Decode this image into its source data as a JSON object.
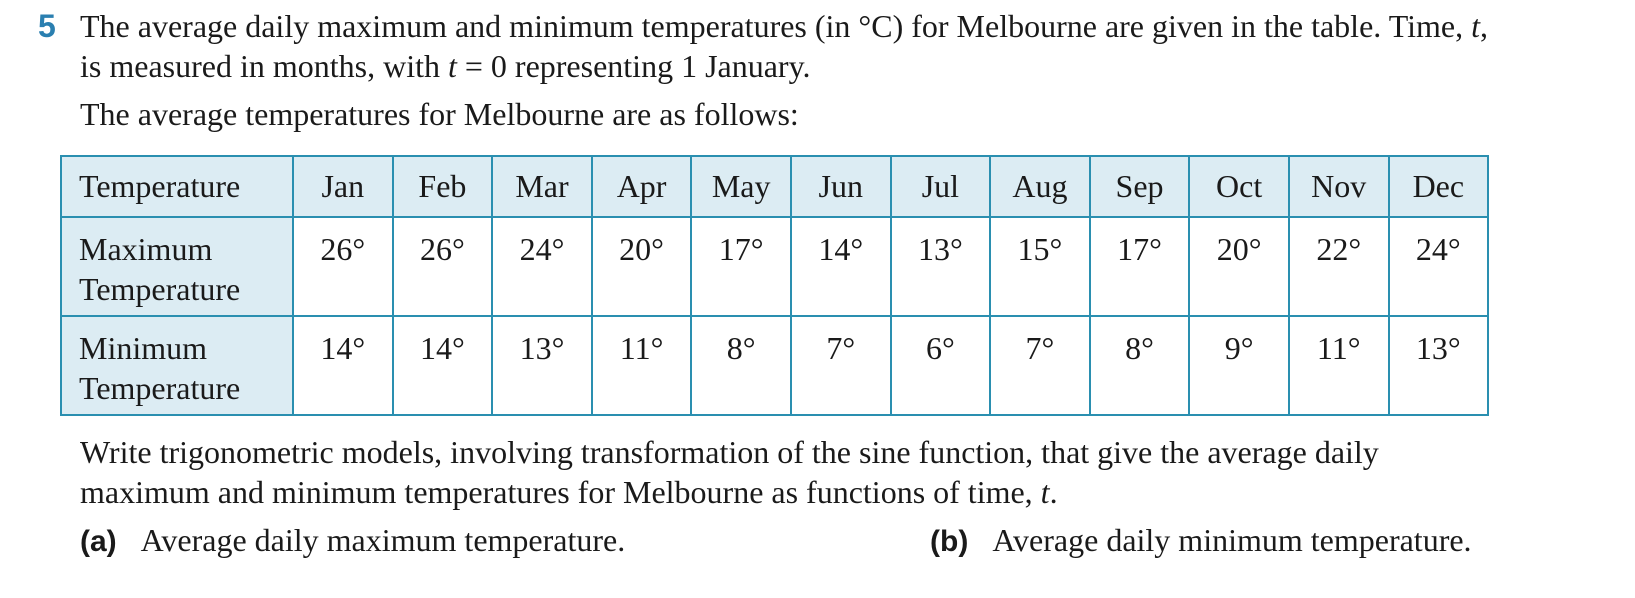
{
  "question": {
    "number": "5",
    "intro_line1_a": "The average daily maximum and minimum temperatures (in °C) for Melbourne are given in the table. Time, ",
    "intro_line1_var": "t",
    "intro_line1_b": ",",
    "intro_line2_a": "is measured in months, with ",
    "intro_line2_var": "t",
    "intro_line2_b": " = 0 representing 1 January.",
    "lead": "The average temperatures for Melbourne are as follows:",
    "instruction_line1": "Write trigonometric models, involving transformation of the sine function, that give the average daily",
    "instruction_line2_a": "maximum and minimum temperatures for Melbourne as functions of time, ",
    "instruction_line2_var": "t",
    "instruction_line2_b": "."
  },
  "table": {
    "header": [
      "Temperature",
      "Jan",
      "Feb",
      "Mar",
      "Apr",
      "May",
      "Jun",
      "Jul",
      "Aug",
      "Sep",
      "Oct",
      "Nov",
      "Dec"
    ],
    "rows": [
      {
        "label_line1": "Maximum",
        "label_line2": "Temperature",
        "values": [
          "26°",
          "26°",
          "24°",
          "20°",
          "17°",
          "14°",
          "13°",
          "15°",
          "17°",
          "20°",
          "22°",
          "24°"
        ]
      },
      {
        "label_line1": "Minimum",
        "label_line2": "Temperature",
        "values": [
          "14°",
          "14°",
          "13°",
          "11°",
          "8°",
          "7°",
          "6°",
          "7°",
          "8°",
          "9°",
          "11°",
          "13°"
        ]
      }
    ]
  },
  "parts": [
    {
      "label": "(a)",
      "text": "Average daily maximum temperature."
    },
    {
      "label": "(b)",
      "text": "Average daily minimum temperature."
    }
  ],
  "colors": {
    "accent": "#2a7fb0",
    "table_border": "#2a8fb0",
    "header_fill": "#dcecf3"
  }
}
